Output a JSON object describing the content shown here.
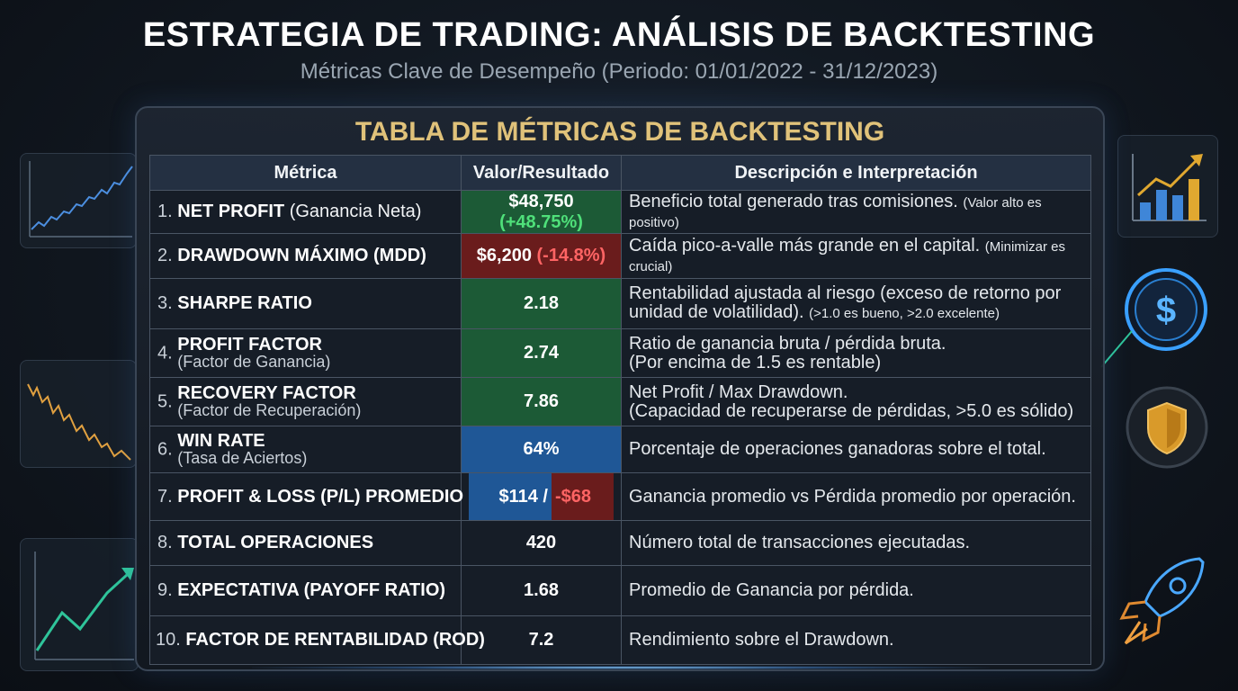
{
  "header": {
    "title": "ESTRATEGIA DE TRADING: ANÁLISIS DE BACKTESTING",
    "subtitle": "Métricas Clave de Desempeño (Periodo: 01/01/2022 - 31/12/2023)"
  },
  "panel": {
    "title": "TABLA DE MÉTRICAS DE BACKTESTING"
  },
  "table": {
    "headers": [
      "Métrica",
      "Valor/Resultado",
      "Descripción e Interpretación"
    ],
    "rows": [
      {
        "num": "1.",
        "name": "NET PROFIT",
        "note": "(Ganancia Neta)",
        "value": "$48,750",
        "value_extra": "(+48.75%)",
        "desc": "Beneficio total generado tras comisiones.",
        "desc_note": "(Valor alto es positivo)"
      },
      {
        "num": "2.",
        "name": "DRAWDOWN MÁXIMO (MDD)",
        "value": "$6,200",
        "value_extra": "(-14.8%)",
        "desc": "Caída pico-a-valle más grande en el capital.",
        "desc_note": "(Minimizar es crucial)"
      },
      {
        "num": "3.",
        "name": "SHARPE RATIO",
        "value": "2.18",
        "desc": "Rentabilidad ajustada al riesgo (exceso de retorno por",
        "desc2": "unidad de volatilidad).",
        "desc2_note": "(>1.0 es bueno, >2.0 excelente)"
      },
      {
        "num": "4.",
        "name": "PROFIT FACTOR",
        "sub": "(Factor de Ganancia)",
        "value": "2.74",
        "desc": "Ratio de ganancia bruta / pérdida bruta.",
        "desc2": "(Por encima de 1.5 es rentable)"
      },
      {
        "num": "5.",
        "name": "RECOVERY FACTOR",
        "sub": "(Factor de Recuperación)",
        "value": "7.86",
        "desc": "Net Profit / Max Drawdown.",
        "desc2": "(Capacidad de recuperarse de pérdidas, >5.0 es sólido)"
      },
      {
        "num": "6.",
        "name": "WIN RATE",
        "sub": "(Tasa de Aciertos)",
        "value": "64%",
        "desc": "Porcentaje de operaciones ganadoras sobre el total."
      },
      {
        "num": "7.",
        "name": "PROFIT & LOSS (P/L) PROMEDIO",
        "value": "$114 /",
        "value_extra": "-$68",
        "desc": "Ganancia promedio vs Pérdida promedio por operación."
      },
      {
        "num": "8.",
        "name": "TOTAL OPERACIONES",
        "value": "420",
        "desc": "Número total de transacciones ejecutadas."
      },
      {
        "num": "9.",
        "name": "EXPECTATIVA (PAYOFF RATIO)",
        "value": "1.68",
        "desc": "Promedio de Ganancia por pérdida."
      },
      {
        "num": "10.",
        "name": "FACTOR DE RENTABILIDAD (ROD)",
        "value": "7.2",
        "desc": "Rendimiento sobre el Drawdown."
      }
    ]
  },
  "colors": {
    "title_gold": "#e0c27a",
    "positive": "#4fe07a",
    "negative": "#ff6464",
    "cell_green": "#1c5a36",
    "cell_red": "#6a1c1c",
    "cell_blue": "#1f5796"
  },
  "icons": [
    "uptrend-chart-icon",
    "downtrend-chart-icon",
    "growth-line-icon",
    "bar-chart-up-icon",
    "dollar-coin-icon",
    "shield-icon",
    "rocket-icon"
  ]
}
